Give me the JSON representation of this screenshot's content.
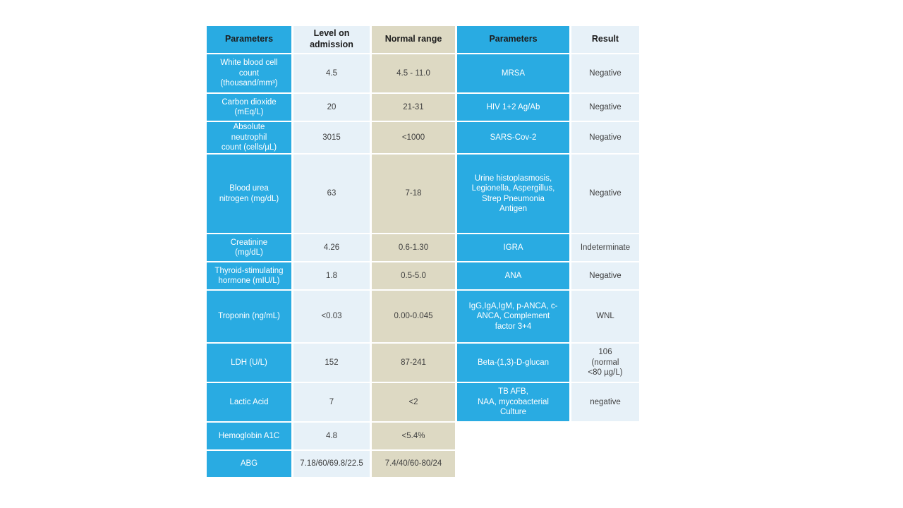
{
  "colors": {
    "cell_blue": "#29abe2",
    "cell_tan": "#ddd9c3",
    "cell_light_blue": "#e7f1f8",
    "header_text": "#1c1c1c",
    "blue_cell_text": "#ffffff",
    "dark_cell_text": "#3f3f3f",
    "page_background": "#ffffff"
  },
  "table": {
    "headers": [
      "Parameters",
      "Level on admission",
      "Normal range",
      "Parameters",
      "Result"
    ],
    "rows": [
      {
        "param_left": "White blood cell\ncount\n(thousand/mm³)",
        "level": "4.5",
        "normal": "4.5 - 11.0",
        "param_right": "MRSA",
        "result": "Negative"
      },
      {
        "param_left": "Carbon dioxide\n(mEq/L)",
        "level": "20",
        "normal": "21-31",
        "param_right": "HIV 1+2 Ag/Ab",
        "result": "Negative"
      },
      {
        "param_left": "Absolute\nneutrophil\ncount (cells/µL)",
        "level": "3015",
        "normal": "<1000",
        "param_right": "SARS-Cov-2",
        "result": "Negative"
      },
      {
        "param_left": "Blood urea\nnitrogen (mg/dL)",
        "level": "63",
        "normal": "7-18",
        "param_right": "Urine histoplasmosis,\nLegionella, Aspergillus,\nStrep Pneumonia\nAntigen",
        "result": "Negative"
      },
      {
        "param_left": "Creatinine\n(mg/dL)",
        "level": "4.26",
        "normal": "0.6-1.30",
        "param_right": "IGRA",
        "result": "Indeterminate"
      },
      {
        "param_left": "Thyroid-stimulating\nhormone (mIU/L)",
        "level": "1.8",
        "normal": "0.5-5.0",
        "param_right": "ANA",
        "result": "Negative"
      },
      {
        "param_left": "Troponin (ng/mL)",
        "level": "<0.03",
        "normal": "0.00-0.045",
        "param_right": "IgG,IgA,IgM, p-ANCA, c-\nANCA, Complement\nfactor 3+4",
        "result": "WNL"
      },
      {
        "param_left": "LDH (U/L)",
        "level": "152",
        "normal": "87-241",
        "param_right": "Beta-(1,3)-D-glucan",
        "result": "106\n(normal\n<80 µg/L)"
      },
      {
        "param_left": "Lactic Acid",
        "level": "7",
        "normal": "<2",
        "param_right": "TB AFB,\nNAA, mycobacterial\nCulture",
        "result": "negative"
      },
      {
        "param_left": "Hemoglobin A1C",
        "level": "4.8",
        "normal": "<5.4%",
        "param_right": null,
        "result": null
      },
      {
        "param_left": "ABG",
        "level": "7.18/60/69.8/22.5",
        "normal": "7.4/40/60-80/24",
        "param_right": null,
        "result": null
      }
    ]
  }
}
